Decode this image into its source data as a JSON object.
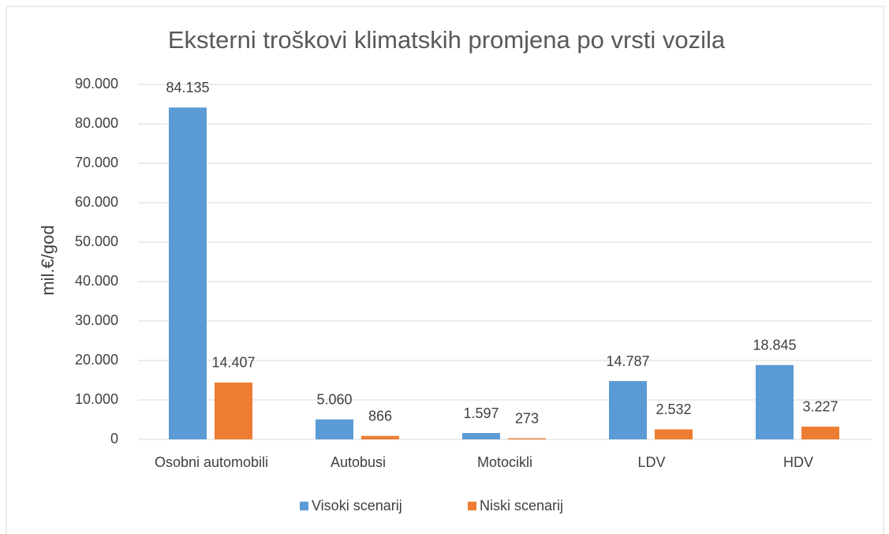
{
  "chart_data": {
    "type": "bar",
    "title": "Eksterni troškovi klimatskih promjena po vrsti vozila",
    "y_label": "mil.€/god",
    "categories": [
      "Osobni automobili",
      "Autobusi",
      "Motocikli",
      "LDV",
      "HDV"
    ],
    "series": [
      {
        "name": "Visoki scenarij",
        "color": "#5b9bd5",
        "values": [
          84135,
          5060,
          1597,
          14787,
          18845
        ],
        "value_labels": [
          "84.135",
          "5.060",
          "1.597",
          "14.787",
          "18.845"
        ]
      },
      {
        "name": "Niski scenarij",
        "color": "#ed7d31",
        "values": [
          14407,
          866,
          273,
          2532,
          3227
        ],
        "value_labels": [
          "14.407",
          "866",
          "273",
          "2.532",
          "3.227"
        ]
      }
    ],
    "ylim": [
      0,
      90000
    ],
    "yticks": [
      0,
      {
        "value": 10000,
        "label": "10.000"
      },
      {
        "value": 20000,
        "label": "20.000"
      },
      {
        "value": 30000,
        "label": "30.000"
      },
      {
        "value": 40000,
        "label": "40.000"
      },
      {
        "value": 50000,
        "label": "50.000"
      },
      {
        "value": 60000,
        "label": "60.000"
      },
      {
        "value": 70000,
        "label": "70.000"
      },
      {
        "value": 80000,
        "label": "80.000"
      },
      {
        "value": 90000,
        "label": "90.000"
      }
    ],
    "grid": true,
    "legend": "bottom"
  }
}
